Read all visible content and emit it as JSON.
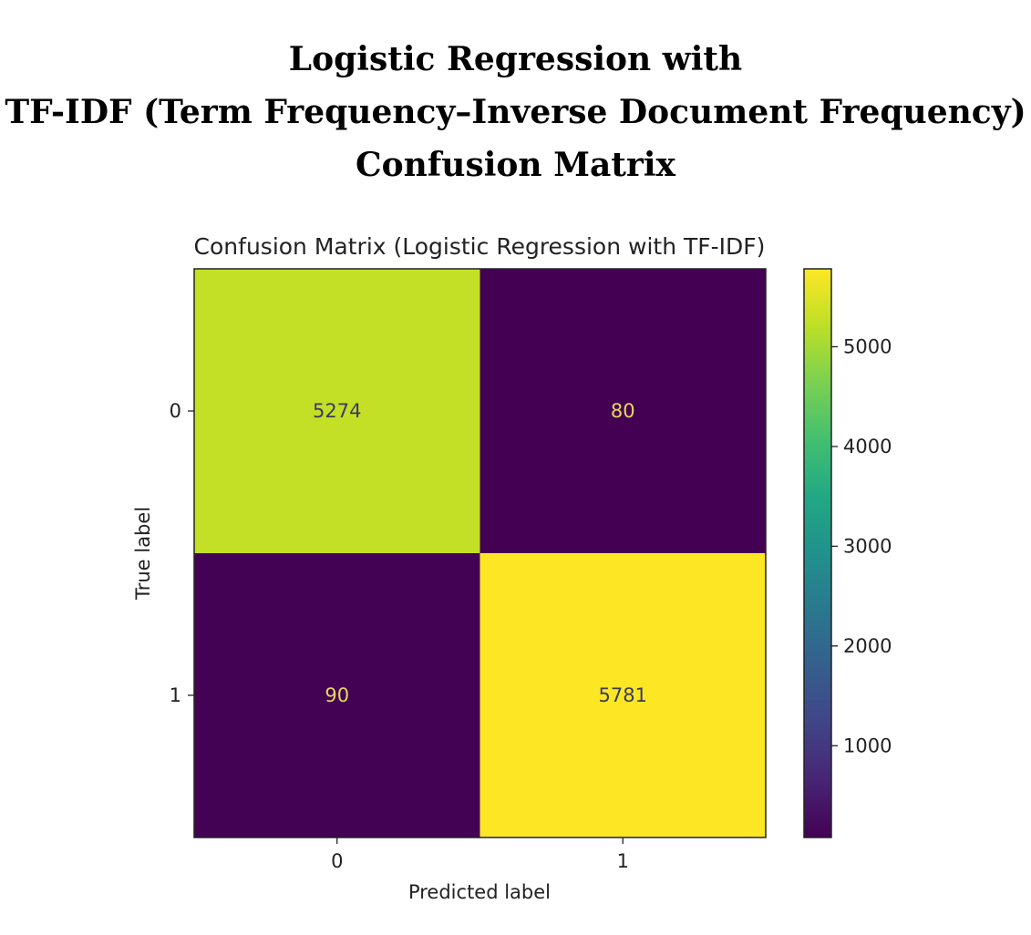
{
  "page_title": {
    "lines": [
      "Logistic Regression with",
      "TF-IDF (Term Frequency–Inverse Document Frequency)",
      "Confusion Matrix"
    ]
  },
  "chart_data": {
    "type": "heatmap",
    "title": "Confusion Matrix (Logistic Regression with TF-IDF)",
    "xlabel": "Predicted label",
    "ylabel": "True label",
    "x_categories": [
      "0",
      "1"
    ],
    "y_categories": [
      "0",
      "1"
    ],
    "values": [
      [
        5274,
        80
      ],
      [
        90,
        5781
      ]
    ],
    "colormap": "viridis",
    "colorbar": {
      "ticks": [
        1000,
        2000,
        3000,
        4000,
        5000
      ],
      "tick_labels": [
        "1000",
        "2000",
        "3000",
        "4000",
        "5000"
      ],
      "min": 80,
      "max": 5781
    },
    "colors": {
      "text_on_dark": "#e7d85e",
      "text_on_light": "#3b3b5c"
    },
    "grid": false
  }
}
